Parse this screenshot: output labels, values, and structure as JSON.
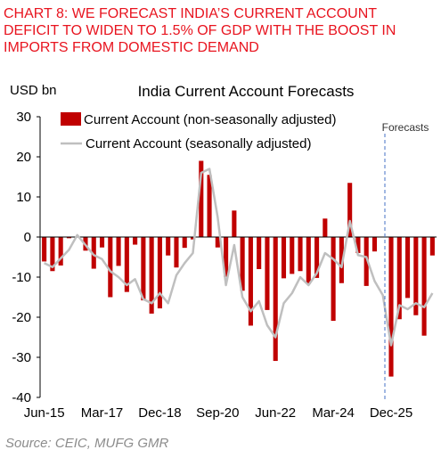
{
  "headline": [
    "CHART 8: WE FORECAST INDIA’S CURRENT ACCOUNT",
    "DEFICIT TO WIDEN TO 1.5% OF GDP WITH THE BOOST IN",
    "IMPORTS FROM DOMESTIC DEMAND"
  ],
  "source": "Source: CEIC, MUFG GMR",
  "chart_data": {
    "type": "bar",
    "title": "India Current Account Forecasts",
    "ylabel": "USD bn",
    "ylim": [
      -40,
      30
    ],
    "yticks": [
      30,
      20,
      10,
      0,
      -10,
      -20,
      -30,
      -40
    ],
    "x_tick_labels": [
      "Jun-15",
      "Mar-17",
      "Dec-18",
      "Sep-20",
      "Jun-22",
      "Mar-24",
      "Dec-25"
    ],
    "x_tick_index": [
      0,
      7,
      14,
      21,
      28,
      35,
      42
    ],
    "annotation": "Forecasts",
    "forecast_start_index": 42,
    "legend_position": "top",
    "colors": {
      "bar": "#c00000",
      "line": "#bfbfbf",
      "forecast_line": "#4472c4"
    },
    "series": [
      {
        "name": "Current Account (non-seasonally adjusted)",
        "type": "bar",
        "values": [
          -6.1,
          -8.5,
          -7.1,
          -0.3,
          -0.1,
          -3.4,
          -7.9,
          -2.6,
          -15.0,
          -7.2,
          -13.7,
          -1.9,
          -15.8,
          -19.1,
          -17.8,
          -4.6,
          -7.6,
          -2.7,
          -0.6,
          19.0,
          15.5,
          -2.6,
          -9.9,
          6.6,
          -13.4,
          -22.1,
          -8.0,
          -18.2,
          -30.9,
          -10.3,
          -9.2,
          -8.5,
          -11.7,
          -10.2,
          4.6,
          -20.9,
          -11.5,
          13.5,
          -4.0,
          -12.2,
          -3.6,
          0.0,
          -34.8,
          -20.5,
          -15.2,
          -19.5,
          -24.6,
          -4.6
        ]
      },
      {
        "name": "Current Account (seasonally adjusted)",
        "type": "line",
        "values": [
          -6.5,
          -7.5,
          -5.3,
          -3.2,
          0.5,
          -2.0,
          -4.5,
          -5.5,
          -8.5,
          -10.0,
          -12.0,
          -10.5,
          -15.5,
          -16.5,
          -14.0,
          -16.5,
          -9.5,
          -6.5,
          -4.0,
          16.0,
          17.0,
          5.0,
          -12.0,
          -2.0,
          -15.0,
          -18.5,
          -16.0,
          -22.0,
          -25.0,
          -16.5,
          -14.0,
          -10.0,
          -12.0,
          -9.0,
          -4.0,
          -5.5,
          -7.5,
          4.0,
          -4.5,
          -5.0,
          -11.0,
          -14.5,
          -27.0,
          -17.0,
          -18.0,
          -16.5,
          -17.5,
          -14.0
        ]
      }
    ]
  }
}
